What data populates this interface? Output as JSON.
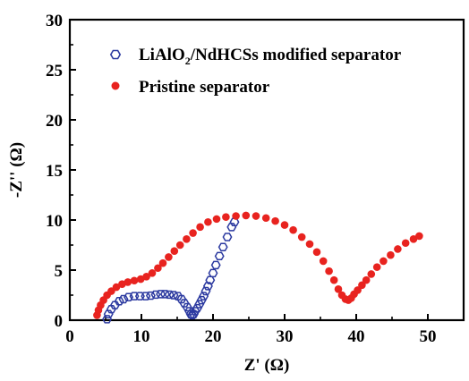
{
  "chart_data": {
    "type": "scatter",
    "xlabel": "Z' (Ω)",
    "ylabel": "-Z'' (Ω)",
    "xlim": [
      0,
      55
    ],
    "ylim": [
      0,
      30
    ],
    "xticks": [
      "0",
      "10",
      "20",
      "30",
      "40",
      "50"
    ],
    "yticks": [
      "0",
      "5",
      "10",
      "15",
      "20",
      "25",
      "30"
    ],
    "legend_position": "top-left",
    "series": [
      {
        "name_main": "LiAlO",
        "name_sub": "2",
        "name_rest": "/NdHCSs modified separator",
        "marker": "open-hexagon",
        "color": "#2c3aa0",
        "points": [
          [
            5.2,
            0.1
          ],
          [
            5.4,
            0.6
          ],
          [
            5.8,
            1.1
          ],
          [
            6.3,
            1.5
          ],
          [
            6.9,
            1.9
          ],
          [
            7.5,
            2.1
          ],
          [
            8.2,
            2.3
          ],
          [
            9.0,
            2.4
          ],
          [
            9.8,
            2.4
          ],
          [
            10.6,
            2.4
          ],
          [
            11.3,
            2.45
          ],
          [
            12.0,
            2.55
          ],
          [
            12.7,
            2.6
          ],
          [
            13.3,
            2.6
          ],
          [
            13.9,
            2.55
          ],
          [
            14.5,
            2.5
          ],
          [
            15.1,
            2.4
          ],
          [
            15.6,
            2.1
          ],
          [
            16.0,
            1.7
          ],
          [
            16.4,
            1.3
          ],
          [
            16.7,
            0.9
          ],
          [
            16.9,
            0.6
          ],
          [
            17.1,
            0.5
          ],
          [
            17.3,
            0.6
          ],
          [
            17.5,
            0.9
          ],
          [
            17.8,
            1.2
          ],
          [
            18.1,
            1.6
          ],
          [
            18.4,
            2.0
          ],
          [
            18.7,
            2.4
          ],
          [
            19.0,
            2.9
          ],
          [
            19.3,
            3.4
          ],
          [
            19.6,
            4.0
          ],
          [
            20.0,
            4.7
          ],
          [
            20.4,
            5.5
          ],
          [
            20.9,
            6.4
          ],
          [
            21.4,
            7.3
          ],
          [
            22.0,
            8.3
          ],
          [
            22.6,
            9.3
          ],
          [
            23.0,
            9.8
          ]
        ]
      },
      {
        "name": "Pristine separator",
        "marker": "filled-circle",
        "color": "#e8231f",
        "points": [
          [
            3.8,
            0.5
          ],
          [
            4.0,
            1.0
          ],
          [
            4.3,
            1.5
          ],
          [
            4.7,
            2.0
          ],
          [
            5.2,
            2.5
          ],
          [
            5.8,
            2.9
          ],
          [
            6.5,
            3.3
          ],
          [
            7.3,
            3.6
          ],
          [
            8.1,
            3.8
          ],
          [
            9.0,
            3.95
          ],
          [
            9.9,
            4.1
          ],
          [
            10.7,
            4.35
          ],
          [
            11.5,
            4.7
          ],
          [
            12.3,
            5.2
          ],
          [
            13.0,
            5.7
          ],
          [
            13.8,
            6.3
          ],
          [
            14.6,
            6.9
          ],
          [
            15.4,
            7.5
          ],
          [
            16.3,
            8.1
          ],
          [
            17.2,
            8.7
          ],
          [
            18.2,
            9.3
          ],
          [
            19.3,
            9.8
          ],
          [
            20.5,
            10.1
          ],
          [
            21.8,
            10.3
          ],
          [
            23.2,
            10.4
          ],
          [
            24.6,
            10.45
          ],
          [
            26.0,
            10.4
          ],
          [
            27.4,
            10.2
          ],
          [
            28.7,
            9.9
          ],
          [
            30.0,
            9.5
          ],
          [
            31.2,
            9.0
          ],
          [
            32.4,
            8.3
          ],
          [
            33.5,
            7.6
          ],
          [
            34.5,
            6.8
          ],
          [
            35.4,
            5.9
          ],
          [
            36.2,
            4.9
          ],
          [
            36.9,
            4.0
          ],
          [
            37.5,
            3.1
          ],
          [
            38.0,
            2.5
          ],
          [
            38.5,
            2.1
          ],
          [
            38.9,
            2.0
          ],
          [
            39.3,
            2.2
          ],
          [
            39.7,
            2.6
          ],
          [
            40.2,
            3.0
          ],
          [
            40.8,
            3.5
          ],
          [
            41.4,
            4.0
          ],
          [
            42.1,
            4.6
          ],
          [
            42.9,
            5.3
          ],
          [
            43.8,
            5.9
          ],
          [
            44.8,
            6.5
          ],
          [
            45.8,
            7.1
          ],
          [
            46.9,
            7.7
          ],
          [
            48.0,
            8.1
          ],
          [
            48.8,
            8.4
          ]
        ]
      }
    ]
  }
}
